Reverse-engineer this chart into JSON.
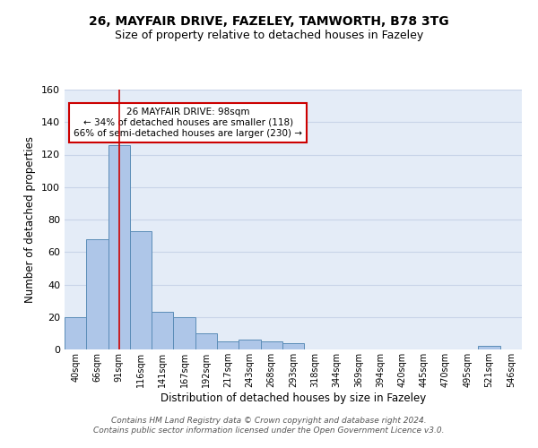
{
  "title1": "26, MAYFAIR DRIVE, FAZELEY, TAMWORTH, B78 3TG",
  "title2": "Size of property relative to detached houses in Fazeley",
  "xlabel": "Distribution of detached houses by size in Fazeley",
  "ylabel": "Number of detached properties",
  "categories": [
    "40sqm",
    "66sqm",
    "91sqm",
    "116sqm",
    "141sqm",
    "167sqm",
    "192sqm",
    "217sqm",
    "243sqm",
    "268sqm",
    "293sqm",
    "318sqm",
    "344sqm",
    "369sqm",
    "394sqm",
    "420sqm",
    "445sqm",
    "470sqm",
    "495sqm",
    "521sqm",
    "546sqm"
  ],
  "values": [
    20,
    68,
    126,
    73,
    23,
    20,
    10,
    5,
    6,
    5,
    4,
    0,
    0,
    0,
    0,
    0,
    0,
    0,
    0,
    2,
    0
  ],
  "bar_color": "#aec6e8",
  "bar_edge_color": "#5b8db8",
  "vline_x": 2,
  "vline_color": "#cc0000",
  "annotation_text": "26 MAYFAIR DRIVE: 98sqm\n← 34% of detached houses are smaller (118)\n66% of semi-detached houses are larger (230) →",
  "annotation_box_color": "white",
  "annotation_box_edge_color": "#cc0000",
  "ylim": [
    0,
    160
  ],
  "yticks": [
    0,
    20,
    40,
    60,
    80,
    100,
    120,
    140,
    160
  ],
  "grid_color": "#c8d4e8",
  "background_color": "#e4ecf7",
  "footer1": "Contains HM Land Registry data © Crown copyright and database right 2024.",
  "footer2": "Contains public sector information licensed under the Open Government Licence v3.0."
}
